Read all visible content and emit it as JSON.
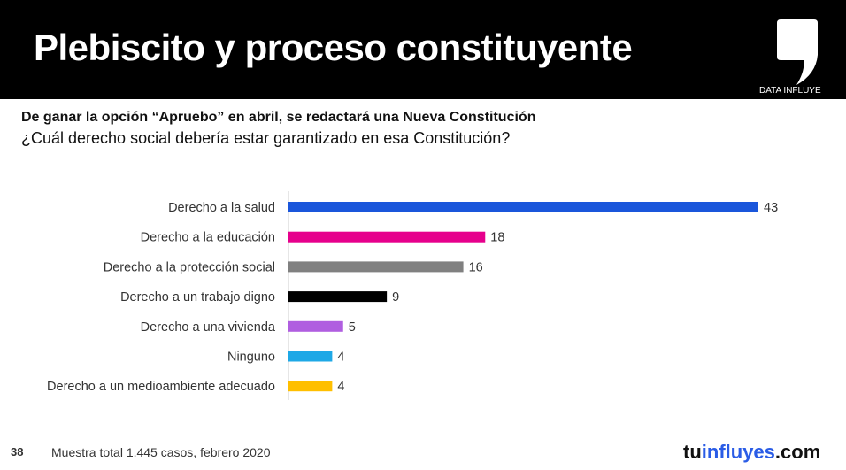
{
  "header": {
    "title": "Plebiscito y proceso constituyente",
    "logo_text": "DATA INFLUYE"
  },
  "subtitle": "De ganar la opción “Apruebo” en abril, se redactará una Nueva Constitución",
  "question": "¿Cuál derecho social debería estar garantizado en esa Constitución?",
  "chart_data": {
    "type": "bar",
    "orientation": "horizontal",
    "categories": [
      "Derecho a la salud",
      "Derecho a la educación",
      "Derecho a la protección social",
      "Derecho a un trabajo digno",
      "Derecho a una vivienda",
      "Ninguno",
      "Derecho a un medioambiente adecuado"
    ],
    "values": [
      43,
      18,
      16,
      9,
      5,
      4,
      4
    ],
    "colors": [
      "#1a56db",
      "#e6008c",
      "#808080",
      "#000000",
      "#b05ee0",
      "#1ea8e6",
      "#ffbf00"
    ],
    "xlim": [
      0,
      43
    ]
  },
  "footer": {
    "page": "38",
    "note": "Muestra total 1.445 casos, febrero 2020",
    "brand_a": "tu",
    "brand_b": "influyes",
    ".com": ".com",
    "brand_c": ".com"
  }
}
